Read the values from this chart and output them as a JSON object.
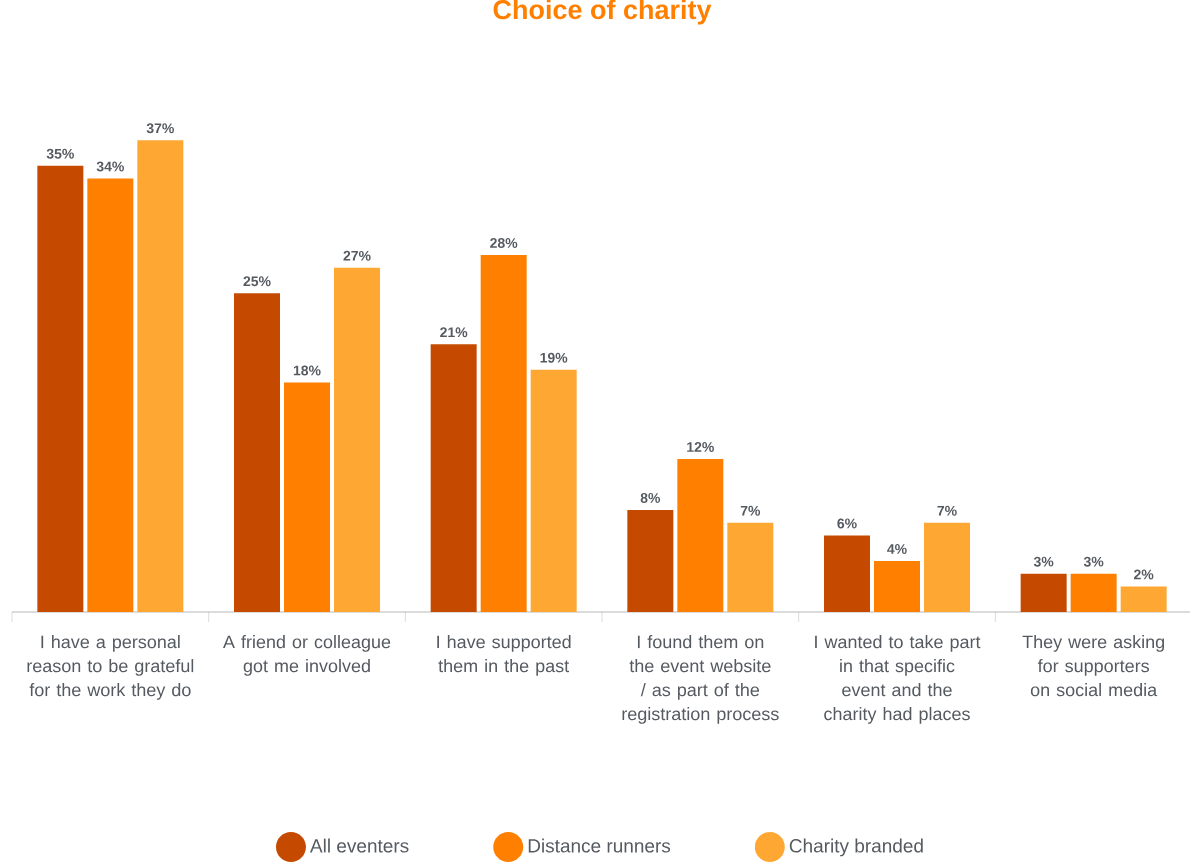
{
  "chart_data": {
    "type": "bar",
    "title": "Choice of charity",
    "categories": [
      "I have a personal reason to be grateful for the work they do",
      "A friend or colleague got me involved",
      "I have supported them in the past",
      "I found them on the event website / as part of the registration process",
      "I wanted to take part in that specific event and the charity had places",
      "They were asking for supporters on social media"
    ],
    "series": [
      {
        "name": "All eventers",
        "color": "#c54a00",
        "values": [
          35,
          25,
          21,
          8,
          6,
          3
        ],
        "value_labels": [
          "35%",
          "25%",
          "21%",
          "8%",
          "6%",
          "3%"
        ]
      },
      {
        "name": "Distance runners",
        "color": "#ff8000",
        "values": [
          34,
          18,
          28,
          12,
          4,
          3
        ],
        "value_labels": [
          "34%",
          "18%",
          "28%",
          "12%",
          "4%",
          "3%"
        ]
      },
      {
        "name": "Charity branded",
        "color": "#ffa733",
        "values": [
          37,
          27,
          19,
          7,
          7,
          2
        ],
        "value_labels": [
          "37%",
          "27%",
          "19%",
          "7%",
          "7%",
          "2%"
        ]
      }
    ],
    "legend": "bottom"
  }
}
